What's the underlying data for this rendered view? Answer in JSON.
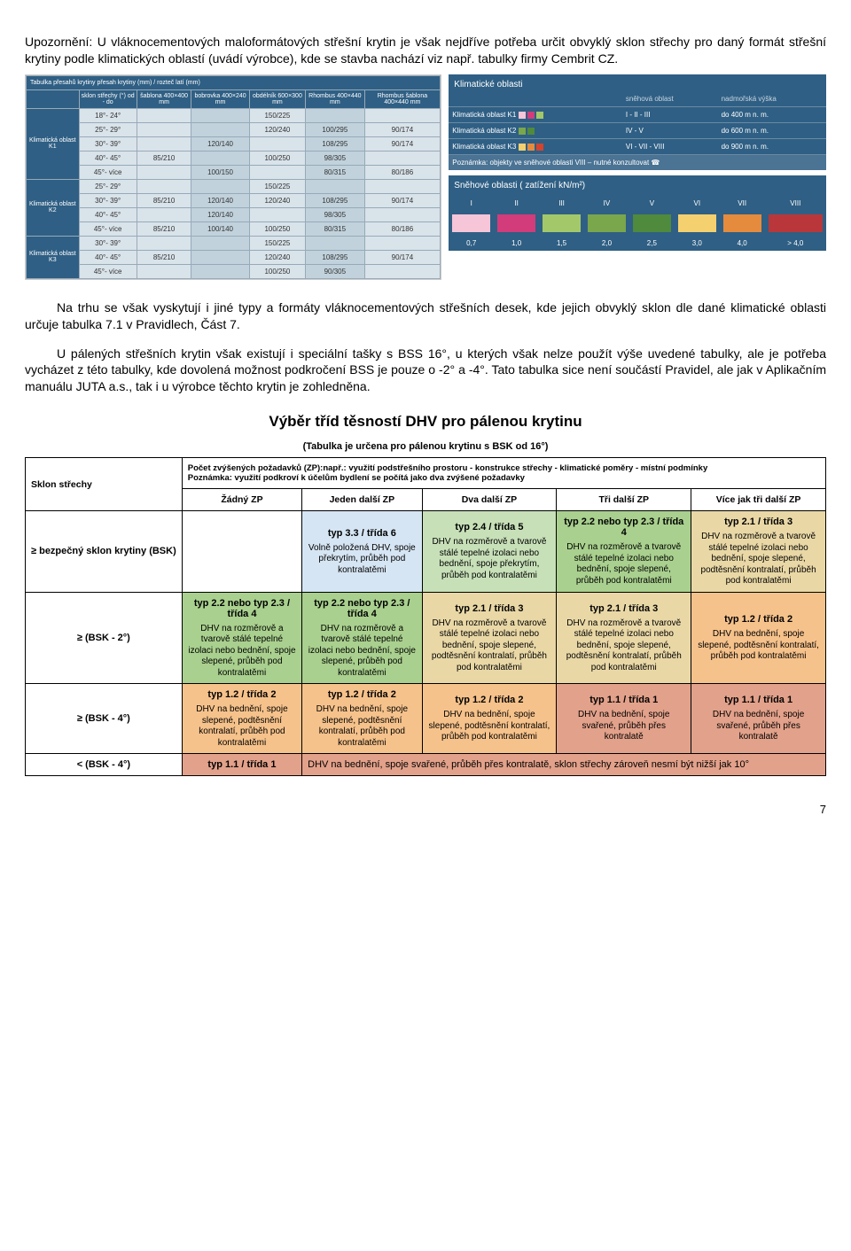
{
  "intro_text": "Upozornění: U vláknocementových maloformátových střešní krytin je však nejdříve potřeba určit obvyklý sklon střechy pro daný formát střešní krytiny podle klimatických oblastí (uvádí výrobce), kde se stavba nachází viz např. tabulky firmy Cembrit CZ.",
  "cembrit_left": {
    "header_top": "Tabulka přesahů krytiny    přesah krytiny (mm) / rozteč latí (mm)",
    "col_headers": [
      "sklon střechy (°) od - do",
      "šablona 400×400 mm",
      "bobrovka 400×240 mm",
      "obdélník 600×300 mm",
      "Rhombus 400×440 mm",
      "Rhombus šablona 400×440 mm"
    ],
    "zones": [
      {
        "name": "Klimatická oblast K1",
        "rows": [
          {
            "r": "18°- 24°",
            "v": [
              "",
              "",
              "150/225",
              "",
              ""
            ]
          },
          {
            "r": "25°- 29°",
            "v": [
              "",
              "",
              "120/240",
              "100/295",
              "90/174"
            ]
          },
          {
            "r": "30°- 39°",
            "v": [
              "",
              "120/140",
              "",
              "108/295",
              "90/174"
            ]
          },
          {
            "r": "40°- 45°",
            "v": [
              "85/210",
              "",
              "100/250",
              "98/305",
              ""
            ]
          },
          {
            "r": "45°- více",
            "v": [
              "",
              "100/150",
              "",
              "80/315",
              "80/186"
            ]
          }
        ]
      },
      {
        "name": "Klimatická oblast K2",
        "rows": [
          {
            "r": "25°- 29°",
            "v": [
              "",
              "",
              "150/225",
              "",
              ""
            ]
          },
          {
            "r": "30°- 39°",
            "v": [
              "85/210",
              "120/140",
              "120/240",
              "108/295",
              "90/174"
            ]
          },
          {
            "r": "40°- 45°",
            "v": [
              "",
              "120/140",
              "",
              "98/305",
              ""
            ]
          },
          {
            "r": "45°- více",
            "v": [
              "85/210",
              "100/140",
              "100/250",
              "80/315",
              "80/186"
            ]
          }
        ]
      },
      {
        "name": "Klimatická oblast K3",
        "rows": [
          {
            "r": "30°- 39°",
            "v": [
              "",
              "",
              "150/225",
              "",
              ""
            ]
          },
          {
            "r": "40°- 45°",
            "v": [
              "85/210",
              "",
              "120/240",
              "108/295",
              "90/174"
            ]
          },
          {
            "r": "45°- více",
            "v": [
              "",
              "",
              "100/250",
              "90/305",
              ""
            ]
          }
        ]
      }
    ]
  },
  "klim": {
    "title": "Klimatické oblasti",
    "headers": [
      "",
      "sněhová oblast",
      "nadmořská výška"
    ],
    "rows": [
      {
        "label": "Klimatická oblast K1",
        "swatches": [
          "#f7c5d8",
          "#d23c7a",
          "#a3c86a"
        ],
        "snow": "I - II - III",
        "alt": "do 400 m n. m."
      },
      {
        "label": "Klimatická oblast K2",
        "swatches": [
          "#7aa64c",
          "#4f8a3d"
        ],
        "snow": "IV - V",
        "alt": "do 600 m n. m."
      },
      {
        "label": "Klimatická oblast K3",
        "swatches": [
          "#f4d06f",
          "#e58b3d",
          "#d2442e"
        ],
        "snow": "VI - VII - VIII",
        "alt": "do 900 m n. m."
      }
    ],
    "note": "Poznámka: objekty ve sněhové oblasti VIII – nutné konzultovat ☎"
  },
  "snow": {
    "title": "Sněhové oblasti   ( zatížení kN/m²)",
    "cols": [
      "I",
      "II",
      "III",
      "IV",
      "V",
      "VI",
      "VII",
      "VIII"
    ],
    "colors": [
      "#f7c5d8",
      "#d23c7a",
      "#a3c86a",
      "#7aa64c",
      "#4f8a3d",
      "#f4d06f",
      "#e58b3d",
      "#b9373a"
    ],
    "vals": [
      "0,7",
      "1,0",
      "1,5",
      "2,0",
      "2,5",
      "3,0",
      "4,0",
      "> 4,0"
    ]
  },
  "para1": "Na trhu se však vyskytují i jiné typy a formáty vláknocementových střešních desek, kde jejich obvyklý sklon dle dané klimatické oblasti určuje tabulka 7.1 v Pravidlech, Část 7.",
  "para2": "U pálených střešních krytin však existují i speciální tašky s BSS 16°, u kterých však nelze použít výše uvedené tabulky, ale je potřeba vycházet z této tabulky, kde dovolená možnost podkročení BSS je pouze o -2° a -4°. Tato tabulka sice není součástí Pravidel, ale jak v Aplikačním manuálu JUTA a.s., tak i u výrobce těchto krytin je zohledněna.",
  "dhv": {
    "title": "Výběr tříd těsností DHV pro pálenou krytinu",
    "subtitle": "(Tabulka je určena pro pálenou krytinu s BSK od 16°)",
    "header_note": "Počet zvýšených požadavků (ZP):např.: využití podstřešního prostoru - konstrukce střechy - klimatické poměry - místní podmínky\nPoznámka: využití podkroví k účelům bydlení se počítá jako dva zvýšené požadavky",
    "row_header": "Sklon střechy",
    "col_headers": [
      "Žádný ZP",
      "Jeden další ZP",
      "Dva další ZP",
      "Tři další ZP",
      "Více jak tři další ZP"
    ],
    "rows": [
      {
        "label": "≥ bezpečný sklon krytiny (BSK)",
        "bg": "#ffffff",
        "cells": [
          {
            "t": "",
            "b": "",
            "bg": "#ffffff"
          },
          {
            "t": "typ 3.3 / třída 6",
            "b": "Volně položená DHV, spoje překrytím, průběh pod kontralatěmi",
            "bg": "#d6e5f3"
          },
          {
            "t": "typ 2.4 / třída 5",
            "b": "DHV na rozměrově a tvarově stálé tepelné izolaci nebo bednění, spoje překrytím, průběh pod kontralatěmi",
            "bg": "#c7e0b8"
          },
          {
            "t": "typ 2.2 nebo typ 2.3 / třída 4",
            "b": "DHV na rozměrově a tvarově stálé tepelné izolaci nebo bednění, spoje slepené, průběh pod kontralatěmi",
            "bg": "#a9d08e"
          },
          {
            "t": "typ 2.1 / třída 3",
            "b": "DHV na rozměrově a tvarově stálé tepelné izolaci nebo bednění, spoje slepené, podtěsnění kontralatí, průběh pod kontralatěmi",
            "bg": "#e9d8a6"
          }
        ]
      },
      {
        "label": "≥ (BSK - 2°)",
        "bg": "#ffffff",
        "cells": [
          {
            "t": "typ 2.2 nebo typ 2.3 / třída 4",
            "b": "DHV na rozměrově a tvarově stálé tepelné izolaci nebo bednění, spoje slepené, průběh pod kontralatěmi",
            "bg": "#a9d08e"
          },
          {
            "t": "typ 2.2 nebo typ 2.3 / třída 4",
            "b": "DHV na rozměrově a tvarově stálé tepelné izolaci nebo bednění, spoje slepené, průběh pod kontralatěmi",
            "bg": "#a9d08e"
          },
          {
            "t": "typ 2.1 / třída 3",
            "b": "DHV na rozměrově a tvarově stálé tepelné izolaci nebo bednění, spoje slepené, podtěsnění kontralatí, průběh pod kontralatěmi",
            "bg": "#e9d8a6"
          },
          {
            "t": "typ 2.1 / třída 3",
            "b": "DHV na rozměrově a tvarově stálé tepelné izolaci nebo bednění, spoje slepené, podtěsnění kontralatí, průběh pod kontralatěmi",
            "bg": "#e9d8a6"
          },
          {
            "t": "typ 1.2 / třída 2",
            "b": "DHV na bednění, spoje slepené, podtěsnění kontralatí, průběh pod kontralatěmi",
            "bg": "#f6c28b"
          }
        ]
      },
      {
        "label": "≥ (BSK - 4°)",
        "bg": "#ffffff",
        "cells": [
          {
            "t": "typ 1.2 / třída 2",
            "b": "DHV na bednění, spoje slepené, podtěsnění kontralatí, průběh pod kontralatěmi",
            "bg": "#f6c28b"
          },
          {
            "t": "typ 1.2 / třída 2",
            "b": "DHV na bednění, spoje slepené, podtěsnění kontralatí, průběh pod kontralatěmi",
            "bg": "#f6c28b"
          },
          {
            "t": "typ 1.2 / třída 2",
            "b": "DHV na bednění, spoje slepené, podtěsnění kontralatí, průběh pod kontralatěmi",
            "bg": "#f6c28b"
          },
          {
            "t": "typ 1.1 / třída 1",
            "b": "DHV na bednění, spoje svařené, průběh přes kontralatě",
            "bg": "#e2a18a"
          },
          {
            "t": "typ 1.1 / třída 1",
            "b": "DHV na bednění, spoje svařené, průběh přes kontralatě",
            "bg": "#e2a18a"
          }
        ]
      }
    ],
    "last_row": {
      "label": "< (BSK - 4°)",
      "cell0": "typ 1.1 / třída 1",
      "rest": "DHV na bednění, spoje svařené, průběh přes kontralatě, sklon střechy zároveň nesmí být nižší jak 10°",
      "bg": "#e2a18a"
    }
  },
  "page_num": "7"
}
